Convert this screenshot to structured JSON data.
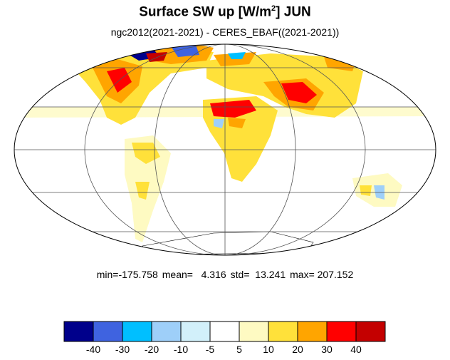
{
  "title": {
    "prefix": "Surface SW up [W/m",
    "superscript": "2",
    "suffix": "]  JUN"
  },
  "subtitle": "ngc2012(2021-2021) - CERES_EBAF((2021-2021))",
  "stats": {
    "min": "min=-175.758",
    "mean": "mean=   4.316",
    "std": "std=  13.241",
    "max": "max= 207.152"
  },
  "projection": "mollweide",
  "colorbar": {
    "colors": [
      "#00008b",
      "#3f63e0",
      "#00bfff",
      "#9ecff9",
      "#d2f0fa",
      "#ffffff",
      "#fefac2",
      "#ffe13a",
      "#ffa500",
      "#ff0000",
      "#c40000"
    ],
    "labels": [
      "-40",
      "-30",
      "-20",
      "-10",
      "-5",
      "5",
      "10",
      "20",
      "30",
      "40"
    ]
  }
}
